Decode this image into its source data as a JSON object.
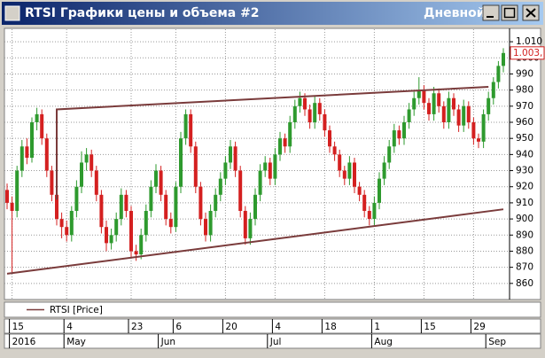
{
  "window": {
    "title": "RTSI Графики цены и объема #2",
    "period": "Дневной"
  },
  "chart_data": {
    "type": "candlestick",
    "categories": [
      null,
      "15",
      null,
      null,
      null,
      null,
      null,
      null,
      null,
      null,
      null,
      null,
      "4",
      null,
      null,
      null,
      null,
      null,
      null,
      null,
      null,
      null,
      null,
      null,
      null,
      "23",
      null,
      null,
      null,
      null,
      null,
      null,
      null,
      null,
      "6",
      null,
      null,
      null,
      null,
      null,
      null,
      null,
      null,
      null,
      "20",
      null,
      null,
      null,
      null,
      null,
      null,
      null,
      null,
      null,
      "4",
      null,
      null,
      null,
      null,
      null,
      null,
      null,
      null,
      null,
      "18",
      null,
      null,
      null,
      null,
      null,
      null,
      null,
      null,
      null,
      "1",
      null,
      null,
      null,
      null,
      null,
      null,
      null,
      null,
      null,
      "15",
      null,
      null,
      null,
      null,
      null,
      null,
      null,
      null,
      null,
      "29",
      null,
      null,
      null,
      null,
      null,
      null
    ],
    "month_labels": [
      null,
      "2016",
      null,
      null,
      null,
      null,
      null,
      null,
      null,
      null,
      null,
      null,
      "May",
      null,
      null,
      null,
      null,
      null,
      null,
      null,
      null,
      null,
      null,
      null,
      null,
      null,
      null,
      null,
      null,
      null,
      null,
      "Jun",
      null,
      null,
      null,
      null,
      null,
      null,
      null,
      null,
      null,
      null,
      null,
      null,
      null,
      null,
      null,
      null,
      null,
      null,
      null,
      null,
      null,
      "Jul",
      null,
      null,
      null,
      null,
      null,
      null,
      null,
      null,
      null,
      null,
      null,
      null,
      null,
      null,
      null,
      null,
      null,
      null,
      null,
      null,
      "Aug",
      null,
      null,
      null,
      null,
      null,
      null,
      null,
      null,
      null,
      null,
      null,
      null,
      null,
      null,
      null,
      null,
      null,
      null,
      null,
      null,
      null,
      null,
      "Sep",
      null,
      null,
      null
    ],
    "series": [
      {
        "name": "RTSI [Price]",
        "color": "#7a3b3b",
        "up_color": "#2e9a2e",
        "down_color": "#d42020",
        "open": [
          918,
          910,
          905,
          930,
          945,
          938,
          960,
          965,
          950,
          930,
          915,
          900,
          895,
          890,
          905,
          920,
          935,
          940,
          930,
          915,
          895,
          885,
          890,
          900,
          915,
          905,
          880,
          878,
          890,
          905,
          920,
          930,
          915,
          900,
          895,
          920,
          950,
          965,
          945,
          920,
          900,
          890,
          905,
          915,
          925,
          935,
          945,
          930,
          905,
          888,
          900,
          915,
          930,
          935,
          925,
          940,
          950,
          945,
          960,
          970,
          975,
          968,
          960,
          972,
          965,
          955,
          945,
          940,
          930,
          925,
          935,
          920,
          915,
          905,
          900,
          910,
          925,
          935,
          945,
          955,
          950,
          960,
          968,
          975,
          980,
          972,
          965,
          978,
          970,
          960,
          975,
          968,
          958,
          970,
          960,
          950,
          948,
          965,
          975,
          985,
          995
        ],
        "high": [
          922,
          914,
          933,
          949,
          950,
          963,
          969,
          968,
          953,
          933,
          918,
          904,
          899,
          908,
          924,
          942,
          944,
          943,
          933,
          918,
          899,
          894,
          904,
          919,
          918,
          908,
          884,
          894,
          909,
          924,
          934,
          933,
          918,
          904,
          923,
          954,
          968,
          968,
          948,
          923,
          904,
          909,
          919,
          929,
          939,
          949,
          948,
          933,
          908,
          904,
          919,
          934,
          939,
          938,
          944,
          954,
          953,
          964,
          974,
          979,
          978,
          971,
          976,
          975,
          968,
          958,
          948,
          943,
          933,
          939,
          938,
          923,
          918,
          908,
          914,
          929,
          939,
          949,
          959,
          958,
          964,
          972,
          979,
          988,
          983,
          975,
          982,
          981,
          973,
          979,
          978,
          971,
          974,
          973,
          963,
          953,
          968,
          979,
          988,
          998,
          1006
        ],
        "low": [
          906,
          867,
          901,
          926,
          934,
          935,
          955,
          946,
          926,
          911,
          896,
          888,
          886,
          886,
          901,
          916,
          930,
          926,
          911,
          891,
          880,
          881,
          886,
          896,
          901,
          876,
          874,
          875,
          886,
          901,
          916,
          911,
          896,
          891,
          892,
          916,
          946,
          941,
          916,
          896,
          886,
          886,
          901,
          911,
          921,
          931,
          926,
          901,
          884,
          884,
          896,
          911,
          926,
          921,
          921,
          936,
          941,
          941,
          956,
          966,
          964,
          956,
          956,
          961,
          951,
          941,
          936,
          926,
          921,
          921,
          916,
          911,
          901,
          896,
          896,
          906,
          921,
          931,
          941,
          946,
          946,
          956,
          964,
          971,
          968,
          961,
          961,
          966,
          956,
          956,
          964,
          954,
          954,
          956,
          946,
          944,
          944,
          961,
          971,
          981,
          991
        ],
        "close": [
          910,
          905,
          930,
          945,
          938,
          960,
          965,
          950,
          930,
          915,
          900,
          895,
          890,
          905,
          920,
          935,
          940,
          930,
          915,
          895,
          885,
          890,
          900,
          915,
          905,
          880,
          878,
          890,
          905,
          920,
          930,
          915,
          900,
          895,
          920,
          950,
          965,
          945,
          920,
          900,
          890,
          905,
          915,
          925,
          935,
          945,
          930,
          905,
          888,
          900,
          915,
          930,
          935,
          925,
          940,
          950,
          945,
          960,
          970,
          975,
          968,
          960,
          972,
          965,
          955,
          945,
          940,
          930,
          925,
          935,
          920,
          915,
          905,
          900,
          910,
          925,
          935,
          945,
          955,
          950,
          960,
          968,
          975,
          980,
          972,
          965,
          978,
          970,
          960,
          975,
          968,
          958,
          970,
          960,
          950,
          948,
          965,
          975,
          985,
          995,
          1003
        ]
      }
    ],
    "trendlines": [
      {
        "x": [
          10,
          10,
          97
        ],
        "y": [
          912,
          968,
          982
        ]
      },
      {
        "x": [
          0,
          100
        ],
        "y": [
          866,
          906
        ]
      }
    ],
    "last_price": {
      "value": 1003,
      "label": "1.003,"
    },
    "ylim": [
      850,
      1015
    ],
    "yticks": [
      860,
      870,
      880,
      890,
      900,
      910,
      920,
      930,
      940,
      950,
      960,
      970,
      980,
      990,
      1000,
      {
        "value": 1010,
        "label": "1.010"
      }
    ],
    "grid": true
  }
}
